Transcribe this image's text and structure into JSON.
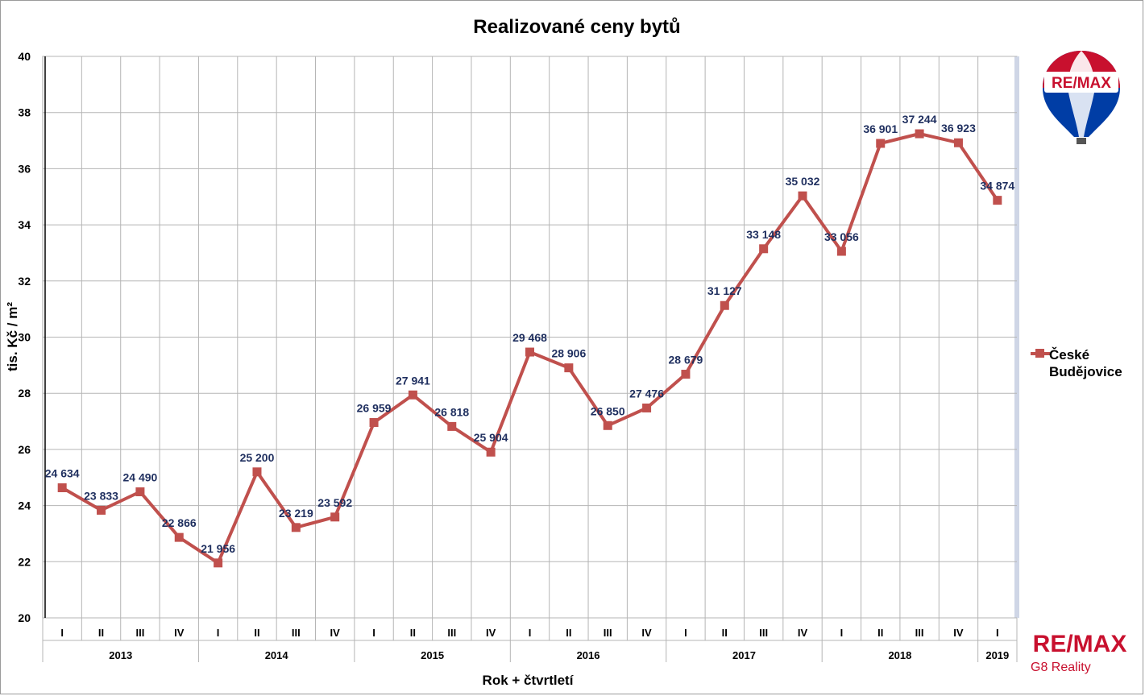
{
  "chart_data": {
    "type": "line",
    "title": "Realizované ceny bytů",
    "xlabel": "Rok + čtvrtletí",
    "ylabel": "tis. Kč / m²",
    "ylim": [
      20,
      40
    ],
    "yticks": [
      20,
      22,
      24,
      26,
      28,
      30,
      32,
      34,
      36,
      38,
      40
    ],
    "grid": true,
    "legend_position": "right",
    "categories": [
      "I",
      "II",
      "III",
      "IV",
      "I",
      "II",
      "III",
      "IV",
      "I",
      "II",
      "III",
      "IV",
      "I",
      "II",
      "III",
      "IV",
      "I",
      "II",
      "III",
      "IV",
      "I",
      "II",
      "III",
      "IV",
      "I"
    ],
    "year_groups": [
      {
        "label": "2013",
        "count": 4
      },
      {
        "label": "2014",
        "count": 4
      },
      {
        "label": "2015",
        "count": 4
      },
      {
        "label": "2016",
        "count": 4
      },
      {
        "label": "2017",
        "count": 4
      },
      {
        "label": "2018",
        "count": 4
      },
      {
        "label": "2019",
        "count": 1
      }
    ],
    "series": [
      {
        "name": "České Budějovice",
        "color": "#c0504d",
        "values": [
          24.634,
          23.833,
          24.49,
          22.866,
          21.956,
          25.2,
          23.219,
          23.592,
          26.959,
          27.941,
          26.818,
          25.904,
          29.468,
          28.906,
          26.85,
          27.476,
          28.679,
          31.127,
          33.148,
          35.032,
          33.056,
          36.901,
          37.244,
          36.923,
          34.874
        ],
        "data_labels": [
          "24 634",
          "23 833",
          "24 490",
          "22 866",
          "21 956",
          "25 200",
          "23 219",
          "23 592",
          "26 959",
          "27 941",
          "26 818",
          "25 904",
          "29 468",
          "28 906",
          "26 850",
          "27 476",
          "28 679",
          "31 127",
          "33 148",
          "35 032",
          "33 056",
          "36 901",
          "37 244",
          "36 923",
          "34 874"
        ]
      }
    ]
  },
  "legend": {
    "line1": "České",
    "line2": "Budějovice"
  },
  "branding": {
    "balloon_text": "RE/MAX",
    "logo_text": "RE/MAX",
    "logo_sub": "G8 Reality",
    "colors": {
      "red": "#c8102e",
      "blue": "#003da5"
    }
  }
}
